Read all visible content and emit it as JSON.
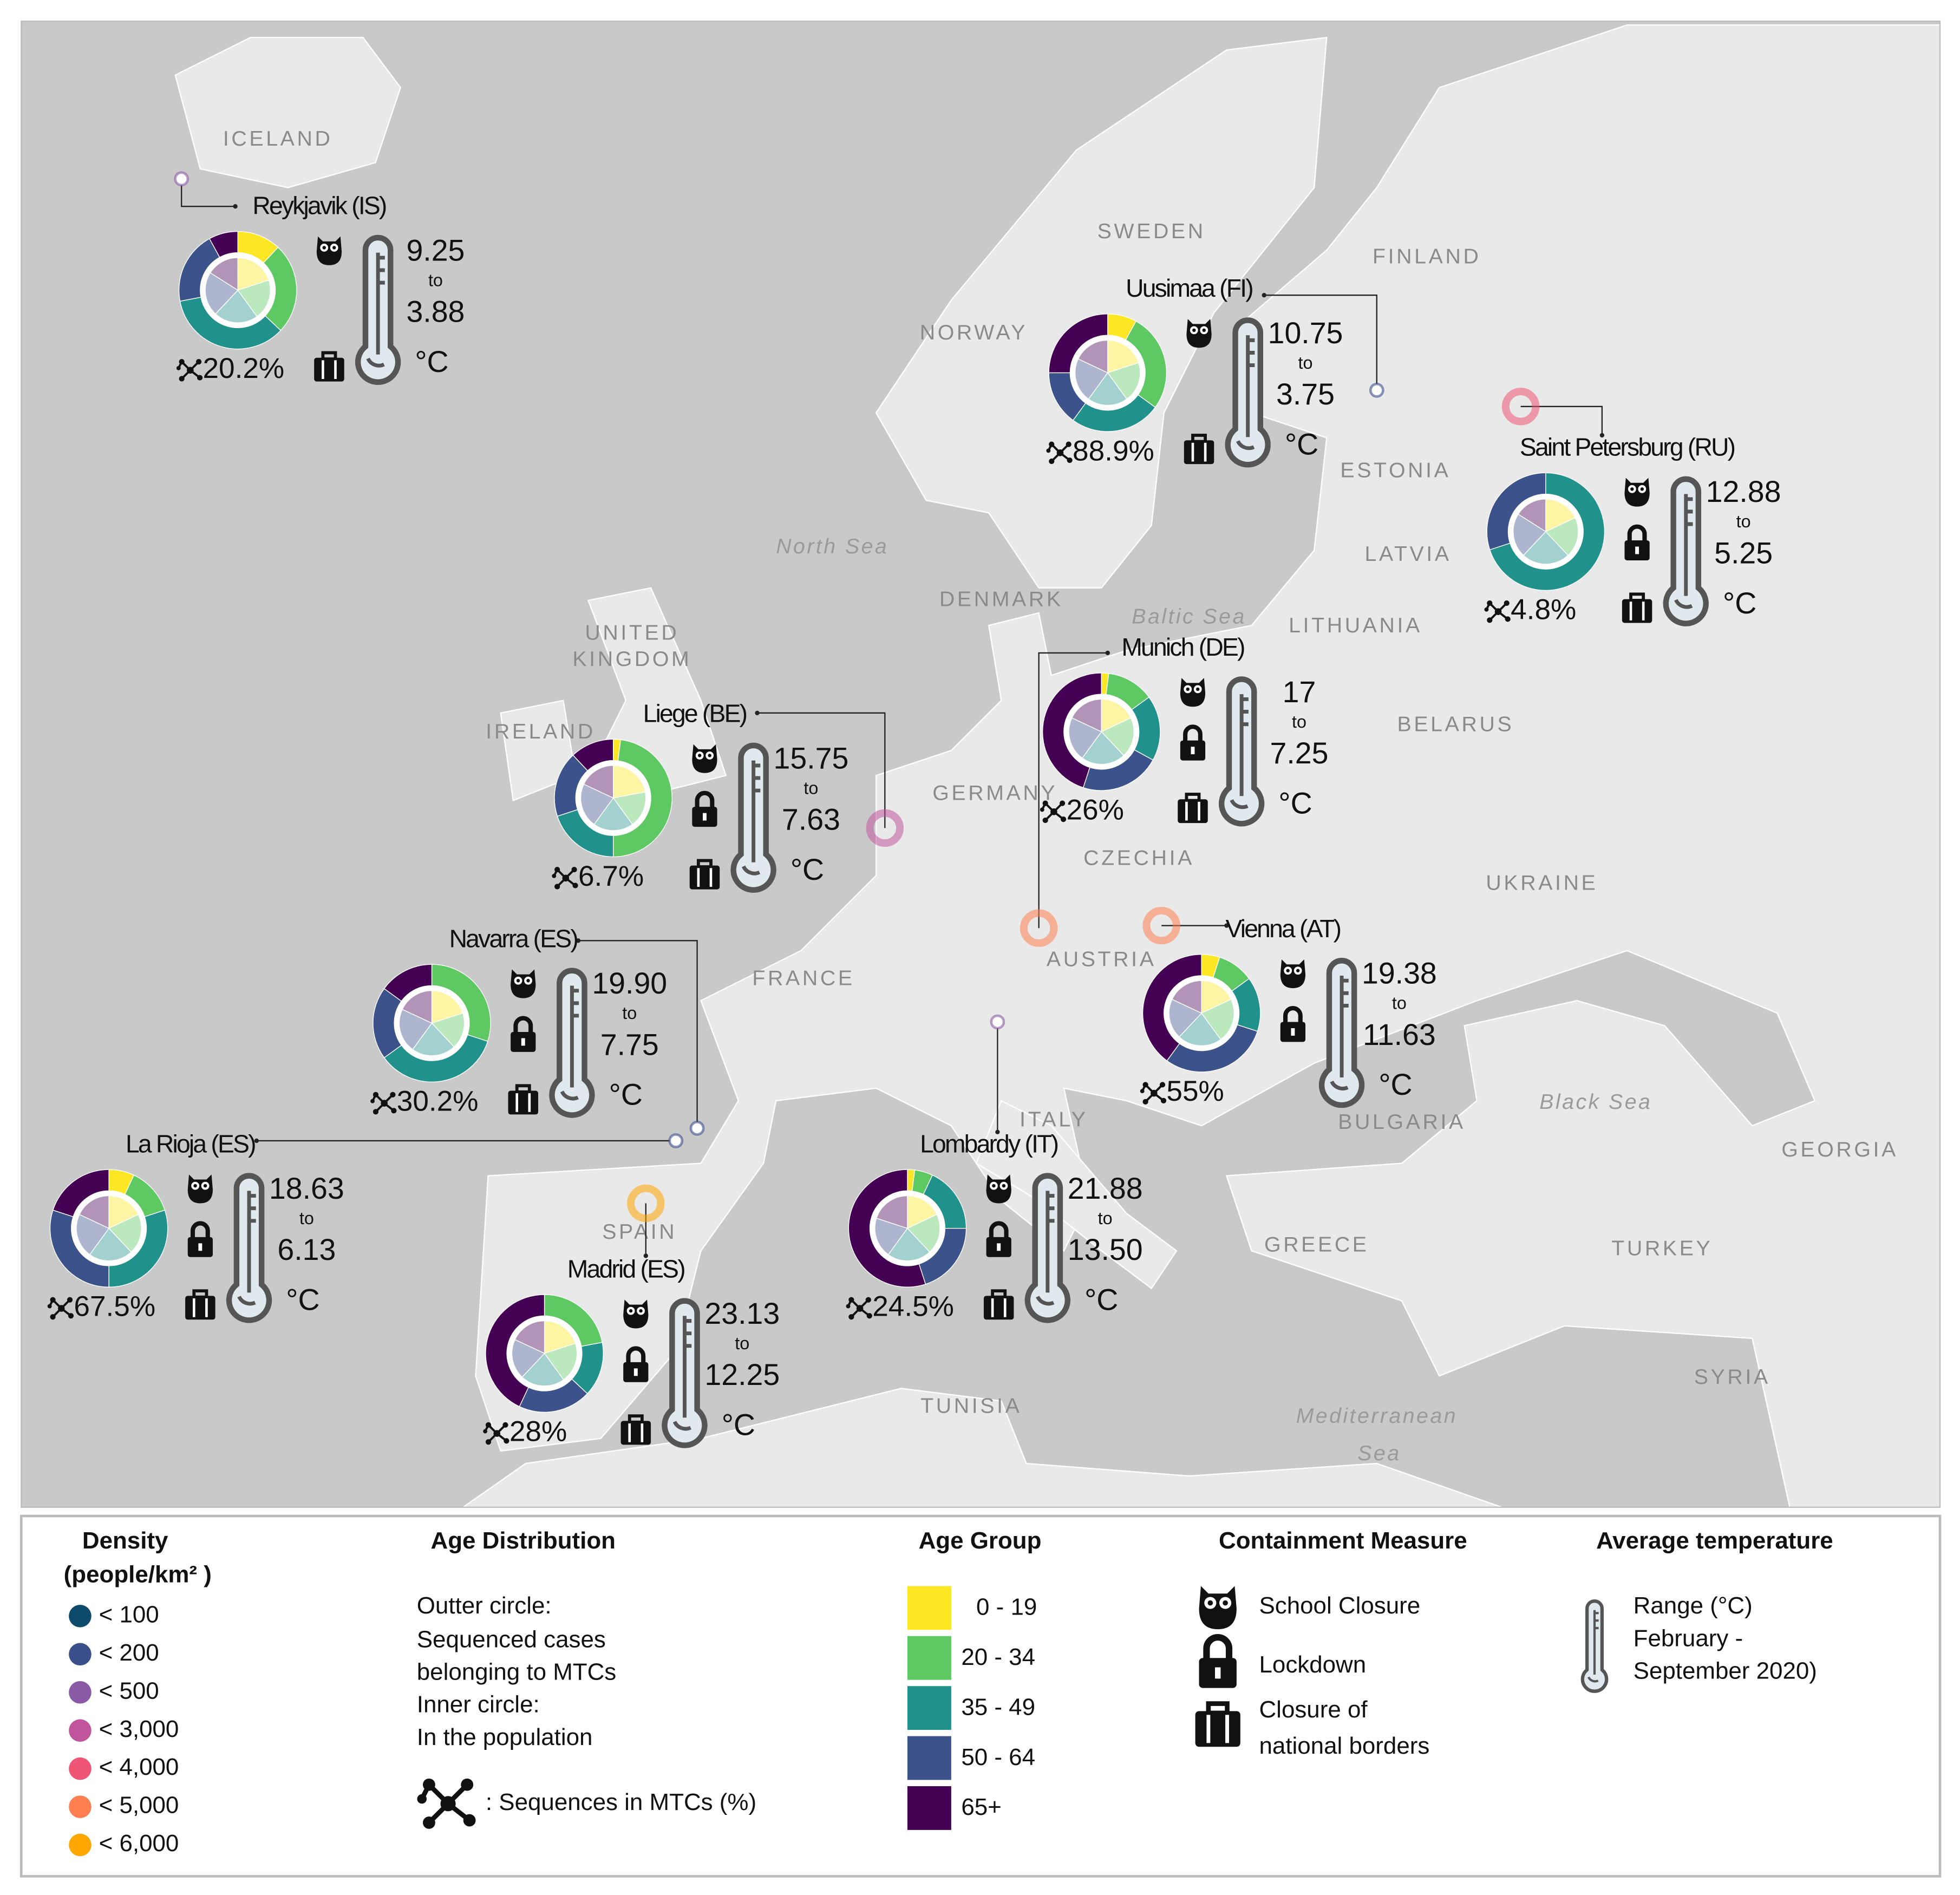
{
  "map": {
    "countries": [
      "ICELAND",
      "SWEDEN",
      "FINLAND",
      "NORWAY",
      "ESTONIA",
      "LATVIA",
      "DENMARK",
      "LITHUANIA",
      "UNITED",
      "KINGDOM",
      "IRELAND",
      "BELARUS",
      "GERMANY",
      "CZECHIA",
      "UKRAINE",
      "FRANCE",
      "AUSTRIA",
      "ITALY",
      "BULGARIA",
      "GEORGIA",
      "SPAIN",
      "GREECE",
      "TURKEY",
      "SYRIA",
      "TUNISIA"
    ],
    "seas": [
      "North Sea",
      "Baltic Sea",
      "Black Sea",
      "Mediterranean",
      "Sea"
    ]
  },
  "temp_to": "to",
  "temp_unit": "°C",
  "regions": [
    {
      "name": "Reykjavik (IS)",
      "mtc_share": "20.2%",
      "temp_max": "9.25",
      "temp_min": "3.88",
      "school_closure": true,
      "lockdown": false,
      "border_closure": true,
      "density_color": "#8a5aa6",
      "outer": [
        12,
        25,
        35,
        20,
        8
      ],
      "inner": [
        20,
        20,
        22,
        22,
        16
      ]
    },
    {
      "name": "Uusimaa (FI)",
      "mtc_share": "88.9%",
      "temp_max": "10.75",
      "temp_min": "3.75",
      "school_closure": true,
      "lockdown": false,
      "border_closure": true,
      "density_color": "#3b4f8a",
      "outer": [
        8,
        27,
        25,
        15,
        25
      ],
      "inner": [
        20,
        20,
        20,
        22,
        18
      ]
    },
    {
      "name": "Saint Petersburg (RU)",
      "mtc_share": "4.8%",
      "temp_max": "12.88",
      "temp_min": "5.25",
      "school_closure": true,
      "lockdown": true,
      "border_closure": true,
      "density_color": "#ef5675",
      "outer": [
        0,
        0,
        70,
        30,
        0
      ],
      "inner": [
        18,
        20,
        24,
        22,
        16
      ]
    },
    {
      "name": "Munich (DE)",
      "mtc_share": "26%",
      "temp_max": "17",
      "temp_min": "7.25",
      "school_closure": true,
      "lockdown": true,
      "border_closure": true,
      "density_color": "#ff7f50",
      "outer": [
        2,
        13,
        18,
        22,
        45
      ],
      "inner": [
        18,
        20,
        22,
        22,
        18
      ]
    },
    {
      "name": "Liege (BE)",
      "mtc_share": "6.7%",
      "temp_max": "15.75",
      "temp_min": "7.63",
      "school_closure": true,
      "lockdown": true,
      "border_closure": true,
      "density_color": "#c1559d",
      "outer": [
        2,
        48,
        20,
        18,
        12
      ],
      "inner": [
        22,
        18,
        20,
        22,
        18
      ]
    },
    {
      "name": "Navarra (ES)",
      "mtc_share": "30.2%",
      "temp_max": "19.90",
      "temp_min": "7.75",
      "school_closure": true,
      "lockdown": true,
      "border_closure": true,
      "density_color": "#3b4f8a",
      "outer": [
        0,
        30,
        35,
        20,
        15
      ],
      "inner": [
        20,
        18,
        22,
        22,
        18
      ]
    },
    {
      "name": "Vienna (AT)",
      "mtc_share": "55%",
      "temp_max": "19.38",
      "temp_min": "11.63",
      "school_closure": true,
      "lockdown": true,
      "border_closure": false,
      "density_color": "#ff7f50",
      "outer": [
        5,
        10,
        15,
        30,
        40
      ],
      "inner": [
        18,
        22,
        22,
        20,
        18
      ]
    },
    {
      "name": "La Rioja (ES)",
      "mtc_share": "67.5%",
      "temp_max": "18.63",
      "temp_min": "6.13",
      "school_closure": true,
      "lockdown": true,
      "border_closure": true,
      "density_color": "#3b4f8a",
      "outer": [
        7,
        13,
        30,
        30,
        20
      ],
      "inner": [
        18,
        20,
        22,
        22,
        18
      ]
    },
    {
      "name": "Lombardy (IT)",
      "mtc_share": "24.5%",
      "temp_max": "21.88",
      "temp_min": "13.50",
      "school_closure": true,
      "lockdown": true,
      "border_closure": true,
      "density_color": "#8a5aa6",
      "outer": [
        2,
        5,
        18,
        20,
        55
      ],
      "inner": [
        18,
        20,
        22,
        20,
        20
      ]
    },
    {
      "name": "Madrid (ES)",
      "mtc_share": "28%",
      "temp_max": "23.13",
      "temp_min": "12.25",
      "school_closure": true,
      "lockdown": true,
      "border_closure": true,
      "density_color": "#ffa600",
      "outer": [
        0,
        22,
        15,
        20,
        43
      ],
      "inner": [
        20,
        20,
        22,
        20,
        18
      ]
    }
  ],
  "legend": {
    "density": {
      "title": "Density",
      "unit": "(people/km² )",
      "items": [
        {
          "label": "< 100",
          "color": "#0d4a6b"
        },
        {
          "label": "< 200",
          "color": "#3b4f8a"
        },
        {
          "label": "< 500",
          "color": "#8a5aa6"
        },
        {
          "label": "< 3,000",
          "color": "#c1559d"
        },
        {
          "label": "< 4,000",
          "color": "#ef5675"
        },
        {
          "label": "< 5,000",
          "color": "#ff7f50"
        },
        {
          "label": "< 6,000",
          "color": "#ffa600"
        }
      ]
    },
    "age_distribution": {
      "title": "Age Distribution",
      "lines": [
        "Outter circle:",
        "Sequenced cases",
        "belonging to MTCs",
        "Inner circle:",
        "In the population"
      ],
      "mtc_note": ": Sequences in MTCs (%)"
    },
    "age_group": {
      "title": "Age Group",
      "items": [
        {
          "label": "0 - 19",
          "color": "#fde725"
        },
        {
          "label": "20 - 34",
          "color": "#5ec962"
        },
        {
          "label": "35 - 49",
          "color": "#21918c"
        },
        {
          "label": "50 - 64",
          "color": "#3b528b"
        },
        {
          "label": "65+",
          "color": "#440154"
        }
      ]
    },
    "containment": {
      "title": "Containment Measure",
      "school": "School Closure",
      "lockdown": "Lockdown",
      "borders": [
        "Closure of",
        "national borders"
      ]
    },
    "temperature": {
      "title": "Average temperature",
      "lines": [
        "Range (°C)",
        "February -",
        "September 2020)"
      ]
    }
  }
}
